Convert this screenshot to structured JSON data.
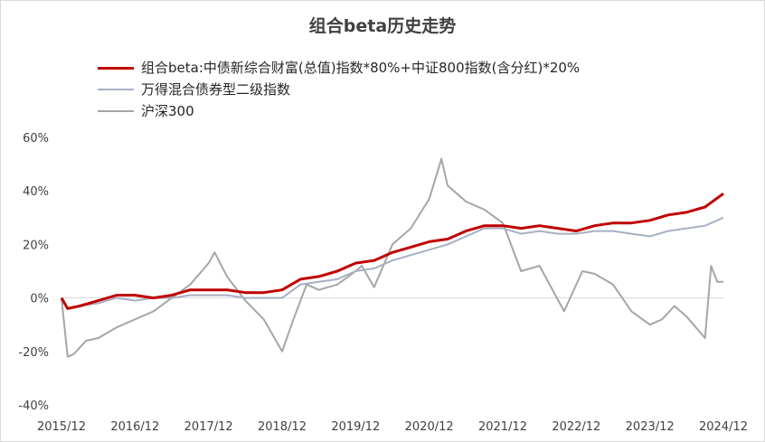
{
  "chart_data": {
    "type": "line",
    "title": "组合beta历史走势",
    "xlabel": "",
    "ylabel": "",
    "x_ticks": [
      "2015/12",
      "2016/12",
      "2017/12",
      "2018/12",
      "2019/12",
      "2020/12",
      "2021/12",
      "2022/12",
      "2023/12",
      "2024/12"
    ],
    "y_ticks": [
      "60%",
      "40%",
      "20%",
      "0%",
      "-20%",
      "-40%"
    ],
    "ylim": [
      -40,
      60
    ],
    "xlim": [
      "2015-12",
      "2024-12"
    ],
    "grid": false,
    "legend_position": "top",
    "series": [
      {
        "name": "组合beta:中债新综合财富(总值)指数*80%+中证800指数(含分红)*20%",
        "color": "#c00000",
        "points": [
          [
            "2015-12",
            0
          ],
          [
            "2016-01",
            -4
          ],
          [
            "2016-03",
            -3
          ],
          [
            "2016-06",
            -1
          ],
          [
            "2016-09",
            1
          ],
          [
            "2016-12",
            1
          ],
          [
            "2017-03",
            0
          ],
          [
            "2017-06",
            1
          ],
          [
            "2017-09",
            3
          ],
          [
            "2017-12",
            3
          ],
          [
            "2018-03",
            3
          ],
          [
            "2018-06",
            2
          ],
          [
            "2018-09",
            2
          ],
          [
            "2018-12",
            3
          ],
          [
            "2019-03",
            7
          ],
          [
            "2019-06",
            8
          ],
          [
            "2019-09",
            10
          ],
          [
            "2019-12",
            13
          ],
          [
            "2020-03",
            14
          ],
          [
            "2020-06",
            17
          ],
          [
            "2020-09",
            19
          ],
          [
            "2020-12",
            21
          ],
          [
            "2021-03",
            22
          ],
          [
            "2021-06",
            25
          ],
          [
            "2021-09",
            27
          ],
          [
            "2021-12",
            27
          ],
          [
            "2022-03",
            26
          ],
          [
            "2022-06",
            27
          ],
          [
            "2022-09",
            26
          ],
          [
            "2022-12",
            25
          ],
          [
            "2023-03",
            27
          ],
          [
            "2023-06",
            28
          ],
          [
            "2023-09",
            28
          ],
          [
            "2023-12",
            29
          ],
          [
            "2024-03",
            31
          ],
          [
            "2024-06",
            32
          ],
          [
            "2024-09",
            34
          ],
          [
            "2024-12",
            39
          ]
        ]
      },
      {
        "name": "万得混合债券型二级指数",
        "color": "#a6b0c3",
        "points": [
          [
            "2015-12",
            0
          ],
          [
            "2016-01",
            -4
          ],
          [
            "2016-03",
            -3
          ],
          [
            "2016-06",
            -2
          ],
          [
            "2016-09",
            0
          ],
          [
            "2016-12",
            -1
          ],
          [
            "2017-03",
            0
          ],
          [
            "2017-06",
            0
          ],
          [
            "2017-09",
            1
          ],
          [
            "2017-12",
            1
          ],
          [
            "2018-03",
            1
          ],
          [
            "2018-06",
            0
          ],
          [
            "2018-09",
            0
          ],
          [
            "2018-12",
            0
          ],
          [
            "2019-03",
            5
          ],
          [
            "2019-06",
            6
          ],
          [
            "2019-09",
            7
          ],
          [
            "2019-12",
            10
          ],
          [
            "2020-03",
            11
          ],
          [
            "2020-06",
            14
          ],
          [
            "2020-09",
            16
          ],
          [
            "2020-12",
            18
          ],
          [
            "2021-03",
            20
          ],
          [
            "2021-06",
            23
          ],
          [
            "2021-09",
            26
          ],
          [
            "2021-12",
            26
          ],
          [
            "2022-03",
            24
          ],
          [
            "2022-06",
            25
          ],
          [
            "2022-09",
            24
          ],
          [
            "2022-12",
            24
          ],
          [
            "2023-03",
            25
          ],
          [
            "2023-06",
            25
          ],
          [
            "2023-09",
            24
          ],
          [
            "2023-12",
            23
          ],
          [
            "2024-03",
            25
          ],
          [
            "2024-06",
            26
          ],
          [
            "2024-09",
            27
          ],
          [
            "2024-12",
            30
          ]
        ]
      },
      {
        "name": "沪深300",
        "color": "#a6a6a6",
        "points": [
          [
            "2015-12",
            0
          ],
          [
            "2016-01",
            -22
          ],
          [
            "2016-02",
            -21
          ],
          [
            "2016-04",
            -16
          ],
          [
            "2016-06",
            -15
          ],
          [
            "2016-09",
            -11
          ],
          [
            "2016-12",
            -8
          ],
          [
            "2017-03",
            -5
          ],
          [
            "2017-06",
            0
          ],
          [
            "2017-09",
            5
          ],
          [
            "2017-12",
            13
          ],
          [
            "2018-01",
            17
          ],
          [
            "2018-03",
            8
          ],
          [
            "2018-06",
            -1
          ],
          [
            "2018-09",
            -8
          ],
          [
            "2018-12",
            -20
          ],
          [
            "2019-02",
            -7
          ],
          [
            "2019-04",
            5
          ],
          [
            "2019-06",
            3
          ],
          [
            "2019-09",
            5
          ],
          [
            "2019-12",
            10
          ],
          [
            "2020-01",
            12
          ],
          [
            "2020-03",
            4
          ],
          [
            "2020-06",
            20
          ],
          [
            "2020-09",
            26
          ],
          [
            "2020-12",
            37
          ],
          [
            "2021-02",
            52
          ],
          [
            "2021-03",
            42
          ],
          [
            "2021-06",
            36
          ],
          [
            "2021-09",
            33
          ],
          [
            "2021-12",
            28
          ],
          [
            "2022-01",
            22
          ],
          [
            "2022-03",
            10
          ],
          [
            "2022-06",
            12
          ],
          [
            "2022-10",
            -5
          ],
          [
            "2022-12",
            5
          ],
          [
            "2023-01",
            10
          ],
          [
            "2023-03",
            9
          ],
          [
            "2023-06",
            5
          ],
          [
            "2023-09",
            -5
          ],
          [
            "2023-12",
            -10
          ],
          [
            "2024-02",
            -8
          ],
          [
            "2024-04",
            -3
          ],
          [
            "2024-06",
            -7
          ],
          [
            "2024-09",
            -15
          ],
          [
            "2024-10",
            12
          ],
          [
            "2024-11",
            6
          ],
          [
            "2024-12",
            6
          ]
        ]
      }
    ]
  }
}
